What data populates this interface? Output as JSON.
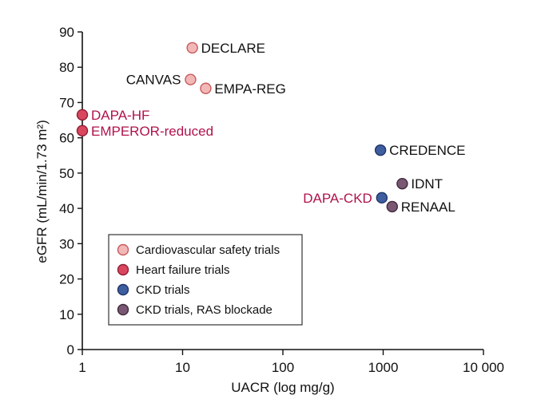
{
  "chart_data": {
    "type": "scatter",
    "xlabel": "UACR (log mg/g)",
    "ylabel": "eGFR (mL/min/1.73 m²)",
    "x_scale": "log",
    "xlim": [
      1,
      10000
    ],
    "ylim": [
      0,
      90
    ],
    "x_ticks": [
      1,
      10,
      100,
      1000,
      10000
    ],
    "x_tick_labels": [
      "1",
      "10",
      "100",
      "1000",
      "10 000"
    ],
    "y_ticks": [
      0,
      10,
      20,
      30,
      40,
      50,
      60,
      70,
      80,
      90
    ],
    "grid": false,
    "legend_position": "bottom-left",
    "series": [
      {
        "name": "Cardiovascular safety trials",
        "color": "#f2b8b8",
        "stroke": "#c85a5a",
        "label_color": "#111111",
        "points": [
          {
            "label": "DECLARE",
            "x": 12.5,
            "y": 85.5,
            "label_side": "right"
          },
          {
            "label": "CANVAS",
            "x": 12.0,
            "y": 76.5,
            "label_side": "left"
          },
          {
            "label": "EMPA-REG",
            "x": 17.0,
            "y": 74.0,
            "label_side": "right"
          }
        ]
      },
      {
        "name": "Heart failure trials",
        "color": "#d9475f",
        "stroke": "#8f1d33",
        "label_color": "#b0124a",
        "points": [
          {
            "label": "DAPA-HF",
            "x": 1.0,
            "y": 66.5,
            "label_side": "right"
          },
          {
            "label": "EMPEROR-reduced",
            "x": 1.0,
            "y": 62.0,
            "label_side": "right"
          }
        ]
      },
      {
        "name": "CKD trials",
        "color": "#3e5ea0",
        "stroke": "#1f3466",
        "label_color": "#111111",
        "points": [
          {
            "label": "CREDENCE",
            "x": 940,
            "y": 56.5,
            "label_side": "right"
          },
          {
            "label": "DAPA-CKD",
            "x": 970,
            "y": 43.0,
            "label_side": "left",
            "label_color": "#b0124a"
          }
        ]
      },
      {
        "name": "CKD trials, RAS blockade",
        "color": "#7a5873",
        "stroke": "#3f2a3b",
        "label_color": "#111111",
        "points": [
          {
            "label": "IDNT",
            "x": 1550,
            "y": 47.0,
            "label_side": "right"
          },
          {
            "label": "RENAAL",
            "x": 1230,
            "y": 40.5,
            "label_side": "right"
          }
        ]
      }
    ]
  }
}
